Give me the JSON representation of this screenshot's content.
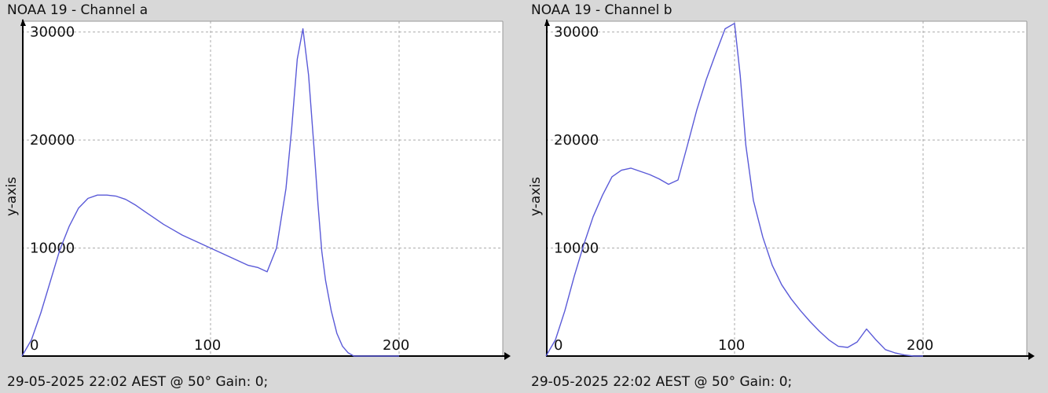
{
  "charts": [
    {
      "title": "NOAA 19 - Channel a",
      "footer": "29-05-2025 22:02 AEST @ 50° Gain: 0;",
      "ylabel": "y-axis"
    },
    {
      "title": "NOAA 19 - Channel b",
      "footer": "29-05-2025 22:02 AEST @ 50° Gain: 0;",
      "ylabel": "y-axis"
    }
  ],
  "chart_data": [
    {
      "type": "line",
      "title": "NOAA 19 - Channel a",
      "xlabel": "",
      "ylabel": "y-axis",
      "xlim": [
        0,
        255
      ],
      "ylim": [
        0,
        31000
      ],
      "xticks": [
        0,
        100,
        200
      ],
      "yticks": [
        10000,
        20000,
        30000
      ],
      "grid": true,
      "line_color": "#5a5ad8",
      "series": [
        {
          "x": [
            0,
            5,
            10,
            15,
            20,
            25,
            30,
            35,
            40,
            45,
            50,
            55,
            60,
            65,
            70,
            75,
            80,
            85,
            90,
            95,
            100,
            105,
            110,
            115,
            120,
            125,
            130,
            135,
            140,
            143,
            146,
            149,
            152,
            155,
            157,
            159,
            161,
            164,
            167,
            170,
            173,
            176,
            180,
            185,
            190,
            195,
            200
          ],
          "y": [
            0,
            1500,
            4000,
            6900,
            9800,
            12000,
            13700,
            14600,
            14900,
            14900,
            14800,
            14500,
            14000,
            13400,
            12800,
            12200,
            11700,
            11200,
            10800,
            10400,
            10000,
            9600,
            9200,
            8800,
            8400,
            8200,
            7800,
            10000,
            15500,
            21000,
            27500,
            30300,
            26000,
            19000,
            14000,
            9700,
            7000,
            4200,
            2100,
            900,
            300,
            0,
            0,
            0,
            0,
            0,
            0
          ]
        }
      ]
    },
    {
      "type": "line",
      "title": "NOAA 19 - Channel b",
      "xlabel": "",
      "ylabel": "y-axis",
      "xlim": [
        0,
        255
      ],
      "ylim": [
        0,
        31000
      ],
      "xticks": [
        0,
        100,
        200
      ],
      "yticks": [
        10000,
        20000,
        30000
      ],
      "grid": true,
      "line_color": "#5a5ad8",
      "series": [
        {
          "x": [
            0,
            5,
            10,
            15,
            20,
            25,
            30,
            35,
            40,
            45,
            50,
            55,
            60,
            65,
            70,
            75,
            80,
            85,
            90,
            95,
            100,
            103,
            106,
            110,
            115,
            120,
            125,
            130,
            135,
            140,
            145,
            150,
            155,
            160,
            165,
            170,
            175,
            180,
            185,
            190,
            195,
            200
          ],
          "y": [
            0,
            1500,
            4200,
            7400,
            10300,
            12900,
            14900,
            16600,
            17200,
            17400,
            17100,
            16800,
            16400,
            15900,
            16300,
            19500,
            22800,
            25600,
            28000,
            30300,
            30800,
            26000,
            19500,
            14400,
            11000,
            8400,
            6600,
            5300,
            4200,
            3200,
            2300,
            1500,
            900,
            800,
            1300,
            2500,
            1500,
            600,
            300,
            100,
            0,
            0
          ]
        }
      ]
    }
  ]
}
